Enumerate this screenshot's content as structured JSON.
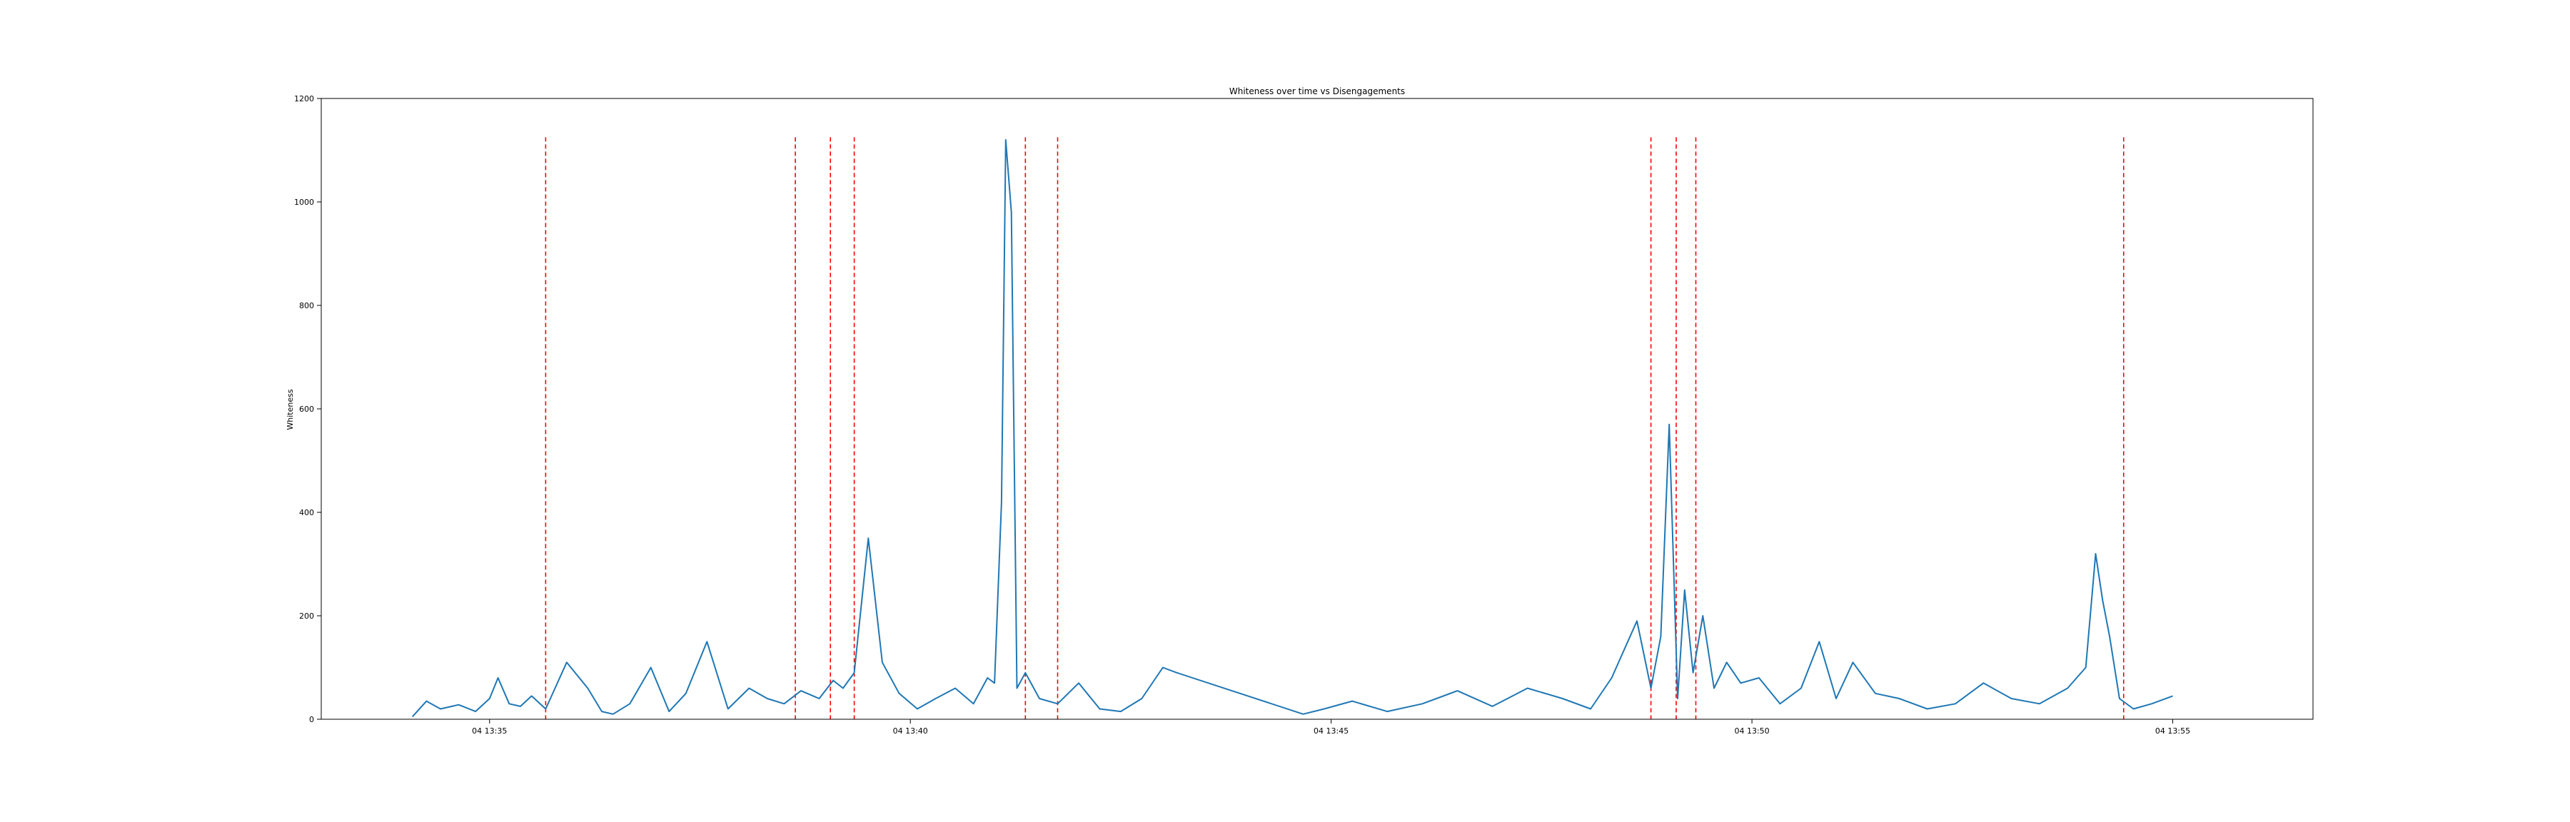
{
  "chart_data": {
    "type": "line",
    "title": "Whiteness over time vs Disengagements",
    "xlabel": "",
    "ylabel": "Whiteness",
    "ylim": [
      0,
      1200
    ],
    "xlim": [
      "04 13:33:00",
      "04 13:56:40"
    ],
    "grid": false,
    "y_ticks": [
      0,
      200,
      400,
      600,
      800,
      1000,
      1200
    ],
    "x_ticks": [
      "04 13:35",
      "04 13:40",
      "04 13:45",
      "04 13:50",
      "04 13:55"
    ],
    "series": [
      {
        "color": "#1f77b4",
        "style": "solid",
        "x": [
          "04 13:34:05",
          "04 13:34:15",
          "04 13:34:25",
          "04 13:34:38",
          "04 13:34:50",
          "04 13:35:00",
          "04 13:35:06",
          "04 13:35:14",
          "04 13:35:22",
          "04 13:35:30",
          "04 13:35:40",
          "04 13:35:55",
          "04 13:36:10",
          "04 13:36:20",
          "04 13:36:28",
          "04 13:36:40",
          "04 13:36:55",
          "04 13:37:08",
          "04 13:37:20",
          "04 13:37:35",
          "04 13:37:50",
          "04 13:38:05",
          "04 13:38:18",
          "04 13:38:30",
          "04 13:38:42",
          "04 13:38:55",
          "04 13:39:05",
          "04 13:39:12",
          "04 13:39:20",
          "04 13:39:30",
          "04 13:39:40",
          "04 13:39:52",
          "04 13:40:05",
          "04 13:40:18",
          "04 13:40:32",
          "04 13:40:45",
          "04 13:40:55",
          "04 13:41:00",
          "04 13:41:05",
          "04 13:41:08",
          "04 13:41:12",
          "04 13:41:16",
          "04 13:41:22",
          "04 13:41:32",
          "04 13:41:45",
          "04 13:42:00",
          "04 13:42:15",
          "04 13:42:30",
          "04 13:42:45",
          "04 13:43:00",
          "04 13:43:10",
          "04 13:44:40",
          "04 13:44:55",
          "04 13:45:15",
          "04 13:45:40",
          "04 13:46:05",
          "04 13:46:30",
          "04 13:46:55",
          "04 13:47:20",
          "04 13:47:45",
          "04 13:48:05",
          "04 13:48:20",
          "04 13:48:38",
          "04 13:48:48",
          "04 13:48:55",
          "04 13:49:01",
          "04 13:49:07",
          "04 13:49:12",
          "04 13:49:18",
          "04 13:49:25",
          "04 13:49:33",
          "04 13:49:42",
          "04 13:49:52",
          "04 13:50:05",
          "04 13:50:20",
          "04 13:50:35",
          "04 13:50:48",
          "04 13:51:00",
          "04 13:51:12",
          "04 13:51:28",
          "04 13:51:45",
          "04 13:52:05",
          "04 13:52:25",
          "04 13:52:45",
          "04 13:53:05",
          "04 13:53:25",
          "04 13:53:45",
          "04 13:53:58",
          "04 13:54:05",
          "04 13:54:10",
          "04 13:54:15",
          "04 13:54:22",
          "04 13:54:32",
          "04 13:54:45",
          "04 13:55:00"
        ],
        "values": [
          5,
          35,
          20,
          28,
          15,
          40,
          80,
          30,
          25,
          45,
          20,
          110,
          60,
          15,
          10,
          30,
          100,
          15,
          50,
          150,
          20,
          60,
          40,
          30,
          55,
          40,
          75,
          60,
          90,
          350,
          110,
          50,
          20,
          40,
          60,
          30,
          80,
          70,
          420,
          1120,
          980,
          60,
          90,
          40,
          30,
          70,
          20,
          15,
          40,
          100,
          90,
          10,
          20,
          35,
          15,
          30,
          55,
          25,
          60,
          40,
          20,
          80,
          190,
          60,
          160,
          570,
          40,
          250,
          90,
          200,
          60,
          110,
          70,
          80,
          30,
          60,
          150,
          40,
          110,
          50,
          40,
          20,
          30,
          70,
          40,
          30,
          60,
          100,
          320,
          230,
          160,
          40,
          20,
          30,
          45
        ]
      }
    ],
    "disengagements": [
      "04 13:35:40",
      "04 13:38:38",
      "04 13:39:03",
      "04 13:39:20",
      "04 13:41:22",
      "04 13:41:45",
      "04 13:48:48",
      "04 13:49:06",
      "04 13:49:20",
      "04 13:54:25"
    ]
  }
}
